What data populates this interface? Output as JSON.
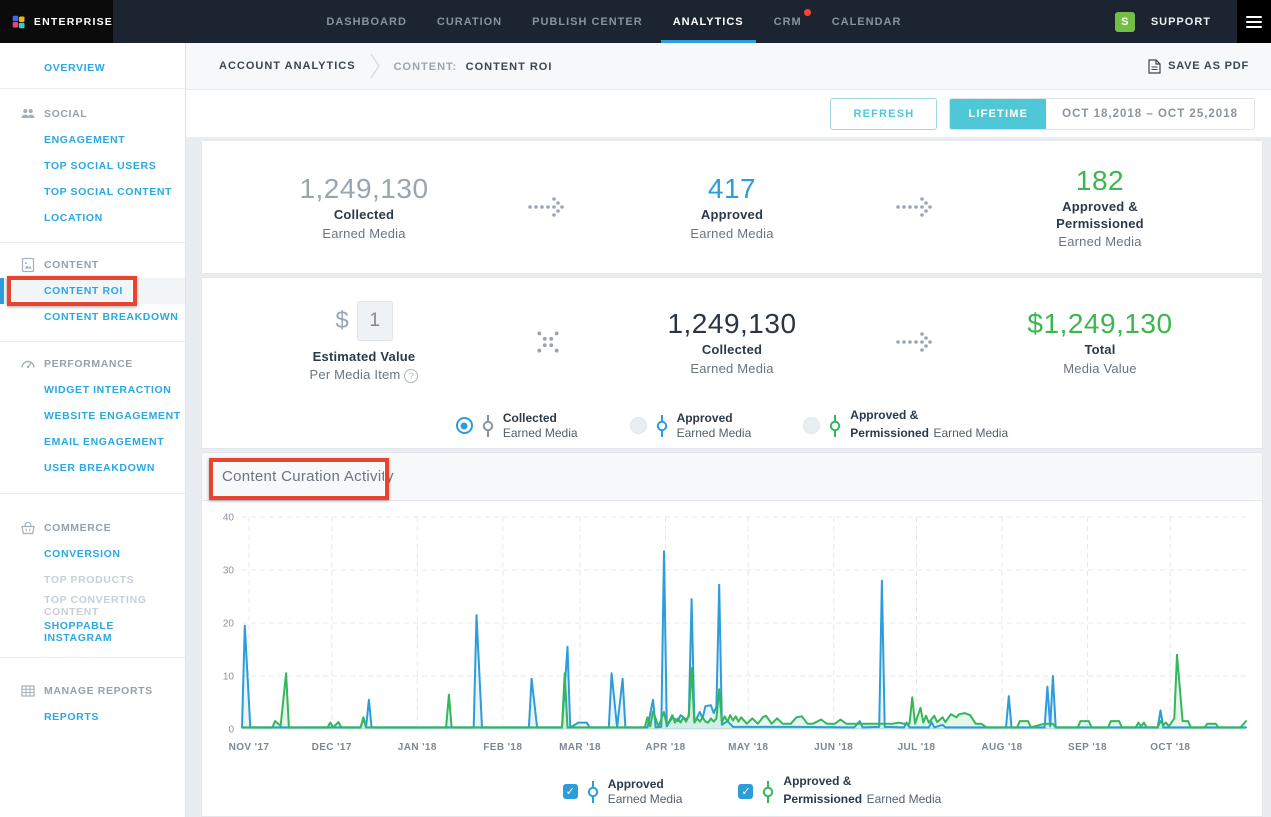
{
  "colors": {
    "accent_blue": "#2d9cdb",
    "link_blue": "#29a9e1",
    "teal": "#4ec8d6",
    "green": "#3cb64e",
    "annotation_red": "#e8432e",
    "nav_bg": "#1b2430",
    "avatar_green": "#72bf44",
    "notification_red": "#ff4136"
  },
  "nav": {
    "brand": "ENTERPRISE",
    "items": [
      "DASHBOARD",
      "CURATION",
      "PUBLISH CENTER",
      "ANALYTICS",
      "CRM",
      "CALENDAR"
    ],
    "active_item": "ANALYTICS",
    "avatar_initial": "S",
    "support_label": "SUPPORT"
  },
  "sidebar": {
    "overview_label": "OVERVIEW",
    "sections": [
      {
        "title": "SOCIAL",
        "icon": "users-icon",
        "items": [
          "ENGAGEMENT",
          "TOP SOCIAL USERS",
          "TOP SOCIAL CONTENT",
          "LOCATION"
        ]
      },
      {
        "title": "CONTENT",
        "icon": "content-icon",
        "items": [
          "CONTENT ROI",
          "CONTENT BREAKDOWN"
        ],
        "active_item": "CONTENT ROI"
      },
      {
        "title": "PERFORMANCE",
        "icon": "gauge-icon",
        "items": [
          "WIDGET INTERACTION",
          "WEBSITE ENGAGEMENT",
          "EMAIL ENGAGEMENT",
          "USER BREAKDOWN"
        ]
      },
      {
        "title": "COMMERCE",
        "icon": "basket-icon",
        "items": [
          "CONVERSION",
          "TOP PRODUCTS",
          "TOP CONVERTING CONTENT",
          "SHOPPABLE INSTAGRAM"
        ],
        "disabled_items": [
          "TOP PRODUCTS",
          "TOP CONVERTING CONTENT"
        ]
      },
      {
        "title": "MANAGE REPORTS",
        "icon": "table-icon",
        "items": [
          "REPORTS"
        ]
      }
    ]
  },
  "breadcrumb": {
    "root": "ACCOUNT ANALYTICS",
    "section": "CONTENT:",
    "page": "CONTENT ROI",
    "save_pdf": "SAVE AS PDF"
  },
  "toolbar": {
    "refresh": "REFRESH",
    "range_mode": "LIFETIME",
    "date_range": "OCT 18,2018 – OCT 25,2018"
  },
  "funnel": {
    "collected": {
      "value": "1,249,130",
      "label1": "Collected",
      "label2": "Earned Media"
    },
    "approved": {
      "value": "417",
      "label1": "Approved",
      "label2": "Earned Media"
    },
    "permissioned": {
      "value": "182",
      "label1": "Approved &",
      "label2": "Permissioned",
      "label3": "Earned Media"
    }
  },
  "valuation": {
    "currency": "$",
    "estimated_value": "1",
    "est_label1": "Estimated Value",
    "est_label2": "Per Media Item",
    "help": "?",
    "collected_value": "1,249,130",
    "collected_label1": "Collected",
    "collected_label2": "Earned Media",
    "total_value": "$1,249,130",
    "total_label1": "Total",
    "total_label2": "Media Value",
    "radios": [
      {
        "bold": "Collected",
        "rest": "Earned Media",
        "selected": true,
        "marker_color": "#8a93a0"
      },
      {
        "bold": "Approved",
        "rest": "Earned Media",
        "selected": false,
        "marker_color": "#2d9cdb"
      },
      {
        "bold": "Approved &",
        "bold2": "Permissioned",
        "rest": "Earned Media",
        "selected": false,
        "marker_color": "#33b75a"
      }
    ]
  },
  "chart_data": {
    "type": "line",
    "title": "Content Curation Activity",
    "x_unit": "days from Nov 1 2017",
    "x_labels": [
      "NOV '17",
      "DEC '17",
      "JAN '18",
      "FEB '18",
      "MAR '18",
      "APR '18",
      "MAY '18",
      "JUN '18",
      "JUL '18",
      "AUG '18",
      "SEP '18",
      "OCT '18"
    ],
    "month_start_days": [
      0,
      30,
      61,
      92,
      120,
      151,
      181,
      212,
      242,
      273,
      304,
      334
    ],
    "x_domain": [
      0,
      364
    ],
    "ylim": [
      0,
      40
    ],
    "y_ticks": [
      0,
      10,
      20,
      30,
      40
    ],
    "grid": "dashed",
    "legend_position": "bottom",
    "series": [
      {
        "name": "Approved Earned Media",
        "color": "#2d9cdb",
        "fill_opacity": 0.1,
        "points": [
          [
            0,
            0.3
          ],
          [
            1,
            19.5
          ],
          [
            3,
            0.3
          ],
          [
            43,
            0.3
          ],
          [
            44,
            2.0
          ],
          [
            45,
            0.4
          ],
          [
            46,
            5.5
          ],
          [
            47,
            0.3
          ],
          [
            84,
            0.3
          ],
          [
            85,
            21.5
          ],
          [
            87,
            0.3
          ],
          [
            104,
            0.3
          ],
          [
            105,
            9.5
          ],
          [
            107,
            0.3
          ],
          [
            116,
            0.3
          ],
          [
            118,
            15.5
          ],
          [
            119,
            0.3
          ],
          [
            122,
            1.2
          ],
          [
            125,
            1.2
          ],
          [
            126,
            0.3
          ],
          [
            133,
            0.3
          ],
          [
            134,
            10.5
          ],
          [
            136,
            0.3
          ],
          [
            138,
            9.5
          ],
          [
            139,
            0.3
          ],
          [
            147,
            0.3
          ],
          [
            149,
            5.5
          ],
          [
            150,
            0.3
          ],
          [
            152,
            0.4
          ],
          [
            153,
            33.5
          ],
          [
            154,
            0.5
          ],
          [
            156,
            2.2
          ],
          [
            158,
            1.5
          ],
          [
            159,
            2.6
          ],
          [
            161,
            1.8
          ],
          [
            162,
            2.4
          ],
          [
            163,
            24.5
          ],
          [
            164,
            1.2
          ],
          [
            166,
            3.2
          ],
          [
            167,
            2.0
          ],
          [
            168,
            4.3
          ],
          [
            170,
            4.5
          ],
          [
            171,
            3.0
          ],
          [
            172,
            4.2
          ],
          [
            173,
            27.2
          ],
          [
            174,
            0.8
          ],
          [
            176,
            1.5
          ],
          [
            178,
            0.4
          ],
          [
            200,
            0.4
          ],
          [
            222,
            0.3
          ],
          [
            224,
            1.5
          ],
          [
            225,
            0.3
          ],
          [
            231,
            0.4
          ],
          [
            232,
            28.0
          ],
          [
            233,
            0.4
          ],
          [
            240,
            0.3
          ],
          [
            241,
            1.2
          ],
          [
            242,
            0.3
          ],
          [
            249,
            0.3
          ],
          [
            250,
            1.3
          ],
          [
            251,
            0.3
          ],
          [
            254,
            0.8
          ],
          [
            255,
            0.3
          ],
          [
            268,
            0.3
          ],
          [
            277,
            0.3
          ],
          [
            278,
            6.2
          ],
          [
            279,
            0.3
          ],
          [
            291,
            0.3
          ],
          [
            292,
            8.0
          ],
          [
            293,
            0.5
          ],
          [
            294,
            10.0
          ],
          [
            295,
            0.3
          ],
          [
            332,
            0.3
          ],
          [
            333,
            3.5
          ],
          [
            334,
            0.3
          ],
          [
            364,
            0.3
          ]
        ]
      },
      {
        "name": "Approved & Permissioned Earned Media",
        "color": "#33b75a",
        "fill_opacity": 0.12,
        "points": [
          [
            0,
            0.3
          ],
          [
            11,
            0.3
          ],
          [
            12,
            1.5
          ],
          [
            14,
            0.6
          ],
          [
            16,
            10.5
          ],
          [
            17,
            0.3
          ],
          [
            31,
            0.3
          ],
          [
            32,
            1.2
          ],
          [
            33,
            0.3
          ],
          [
            35,
            1.3
          ],
          [
            36,
            0.3
          ],
          [
            43,
            0.3
          ],
          [
            44,
            2.2
          ],
          [
            45,
            0.3
          ],
          [
            74,
            0.3
          ],
          [
            75,
            6.5
          ],
          [
            76,
            0.3
          ],
          [
            116,
            0.3
          ],
          [
            117,
            10.5
          ],
          [
            118,
            0.3
          ],
          [
            146,
            0.3
          ],
          [
            147,
            2.2
          ],
          [
            148,
            0.5
          ],
          [
            149,
            3.3
          ],
          [
            151,
            0.5
          ],
          [
            153,
            3.2
          ],
          [
            154,
            0.8
          ],
          [
            155,
            1.5
          ],
          [
            156,
            2.6
          ],
          [
            157,
            1.2
          ],
          [
            158,
            2.0
          ],
          [
            159,
            1.2
          ],
          [
            160,
            2.2
          ],
          [
            161,
            1.4
          ],
          [
            162,
            2.6
          ],
          [
            163,
            11.5
          ],
          [
            164,
            1.2
          ],
          [
            165,
            2.0
          ],
          [
            166,
            1.4
          ],
          [
            167,
            2.2
          ],
          [
            168,
            1.4
          ],
          [
            169,
            1.2
          ],
          [
            170,
            2.0
          ],
          [
            171,
            1.4
          ],
          [
            172,
            2.0
          ],
          [
            173,
            7.5
          ],
          [
            174,
            1.2
          ],
          [
            175,
            2.4
          ],
          [
            176,
            1.4
          ],
          [
            177,
            2.6
          ],
          [
            178,
            1.6
          ],
          [
            179,
            2.4
          ],
          [
            180,
            1.4
          ],
          [
            181,
            2.2
          ],
          [
            183,
            1.0
          ],
          [
            185,
            2.0
          ],
          [
            187,
            1.0
          ],
          [
            189,
            2.3
          ],
          [
            190,
            2.5
          ],
          [
            192,
            1.0
          ],
          [
            194,
            2.0
          ],
          [
            196,
            1.0
          ],
          [
            199,
            1.0
          ],
          [
            201,
            2.2
          ],
          [
            203,
            2.4
          ],
          [
            205,
            1.0
          ],
          [
            207,
            1.0
          ],
          [
            210,
            1.8
          ],
          [
            212,
            1.0
          ],
          [
            215,
            1.0
          ],
          [
            217,
            1.8
          ],
          [
            219,
            1.0
          ],
          [
            222,
            1.0
          ],
          [
            225,
            1.0
          ],
          [
            228,
            1.0
          ],
          [
            231,
            1.0
          ],
          [
            233,
            1.0
          ],
          [
            236,
            1.0
          ],
          [
            238,
            1.2
          ],
          [
            240,
            1.0
          ],
          [
            242,
            1.0
          ],
          [
            243,
            6.0
          ],
          [
            244,
            1.0
          ],
          [
            246,
            4.0
          ],
          [
            247,
            1.2
          ],
          [
            248,
            2.5
          ],
          [
            249,
            1.2
          ],
          [
            251,
            2.5
          ],
          [
            252,
            1.3
          ],
          [
            254,
            2.2
          ],
          [
            255,
            1.3
          ],
          [
            257,
            2.8
          ],
          [
            259,
            2.2
          ],
          [
            260,
            2.8
          ],
          [
            262,
            3.0
          ],
          [
            264,
            2.6
          ],
          [
            266,
            1.0
          ],
          [
            268,
            1.0
          ],
          [
            270,
            0.3
          ],
          [
            276,
            0.3
          ],
          [
            281,
            0.3
          ],
          [
            282,
            1.5
          ],
          [
            285,
            1.5
          ],
          [
            286,
            0.3
          ],
          [
            291,
            1.0
          ],
          [
            294,
            1.0
          ],
          [
            295,
            0.3
          ],
          [
            303,
            0.3
          ],
          [
            304,
            1.5
          ],
          [
            307,
            1.5
          ],
          [
            308,
            0.3
          ],
          [
            314,
            0.3
          ],
          [
            315,
            1.5
          ],
          [
            318,
            1.5
          ],
          [
            319,
            0.3
          ],
          [
            324,
            0.3
          ],
          [
            325,
            1.2
          ],
          [
            326,
            0.5
          ],
          [
            327,
            1.2
          ],
          [
            328,
            0.3
          ],
          [
            332,
            0.3
          ],
          [
            333,
            1.5
          ],
          [
            334,
            0.8
          ],
          [
            335,
            1.2
          ],
          [
            336,
            0.5
          ],
          [
            338,
            2.0
          ],
          [
            339,
            14.0
          ],
          [
            341,
            1.5
          ],
          [
            343,
            1.5
          ],
          [
            344,
            0.3
          ],
          [
            349,
            0.3
          ],
          [
            350,
            1.0
          ],
          [
            353,
            1.0
          ],
          [
            354,
            0.3
          ],
          [
            358,
            0.3
          ],
          [
            362,
            0.3
          ],
          [
            364,
            1.5
          ]
        ]
      }
    ]
  },
  "legend": [
    {
      "bold": "Approved",
      "rest": "Earned Media",
      "checked": true,
      "color": "#2d9cdb"
    },
    {
      "bold": "Approved &",
      "bold2": "Permissioned",
      "rest": "Earned Media",
      "checked": true,
      "color": "#33b75a"
    }
  ]
}
